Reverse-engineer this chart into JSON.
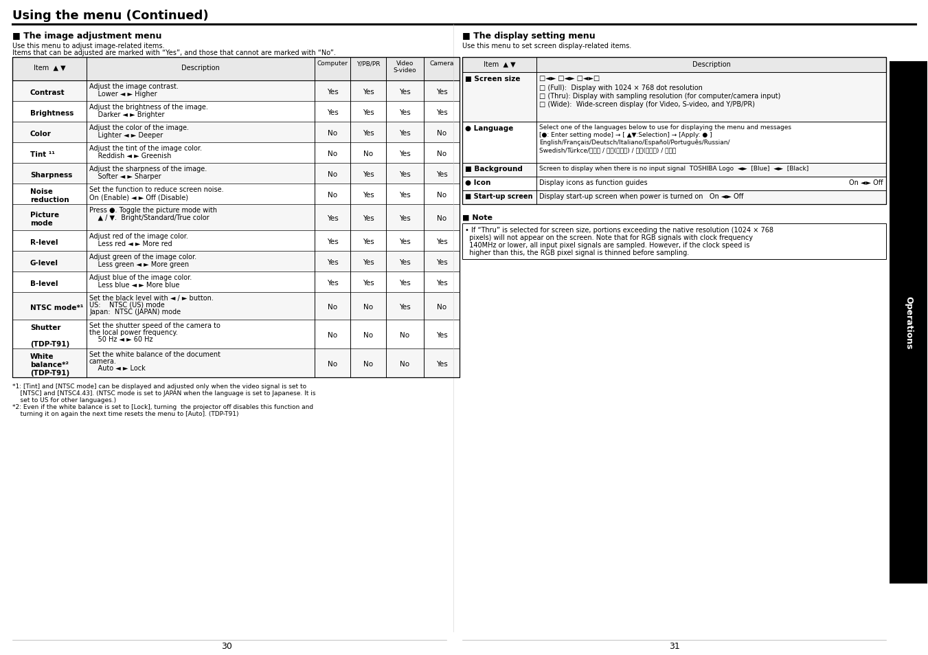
{
  "title": "Using the menu (Continued)",
  "left_section_title": "■ The image adjustment menu",
  "left_subtitle1": "Use this menu to adjust image-related items.",
  "left_subtitle2": "Items that can be adjusted are marked with “Yes”, and those that cannot are marked with “No”.",
  "right_section_title": "■ The display setting menu",
  "right_subtitle": "Use this menu to set screen display-related items.",
  "footnotes_left": [
    "*1: [Tint] and [NTSC mode] can be displayed and adjusted only when the video signal is set to",
    "    [NTSC] and [NTSC4.43]. (NTSC mode is set to JAPAN when the language is set to Japanese. It is",
    "    set to US for other languages.)",
    "*2: Even if the white balance is set to [Lock], turning  the projector off disables this function and",
    "    turning it on again the next time resets the menu to [Auto]. (TDP-T91)"
  ],
  "page_numbers": [
    "30",
    "31"
  ],
  "bg_color": "#ffffff",
  "text_color": "#000000"
}
